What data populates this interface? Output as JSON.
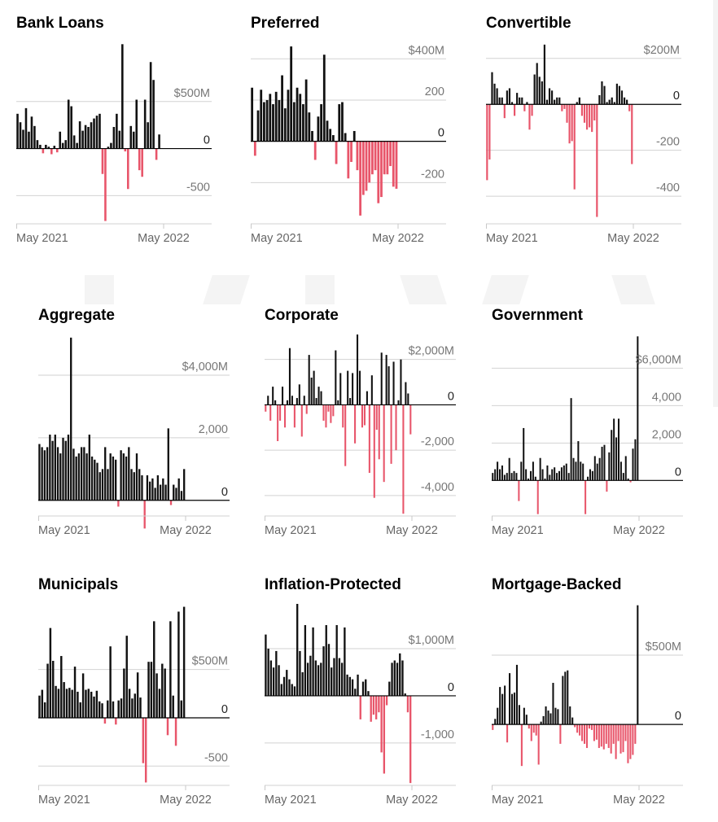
{
  "colors": {
    "inflow": "#111111",
    "outflow": "#e8556a",
    "grid": "#d2d2d2"
  },
  "chart_data": [
    {
      "type": "bar",
      "title": "Bank Loans",
      "ylim": [
        -800,
        1130
      ],
      "yticks": [
        {
          "v": 500,
          "label": "$500M"
        },
        {
          "v": 0,
          "label": "0"
        },
        {
          "v": -500,
          "label": "-500"
        }
      ],
      "xticks": [
        "May 2021",
        "May 2022"
      ],
      "values": [
        370,
        280,
        200,
        430,
        180,
        340,
        240,
        90,
        40,
        -50,
        40,
        20,
        -60,
        30,
        -40,
        180,
        60,
        90,
        520,
        450,
        140,
        60,
        290,
        190,
        250,
        230,
        280,
        320,
        350,
        370,
        -270,
        -770,
        20,
        60,
        230,
        370,
        190,
        1110,
        -30,
        -430,
        240,
        180,
        520,
        -230,
        -300,
        520,
        280,
        920,
        730,
        -120,
        150,
        5
      ]
    },
    {
      "type": "bar",
      "title": "Preferred",
      "ylim": [
        -400,
        480
      ],
      "yticks": [
        {
          "v": 400,
          "label": "$400M"
        },
        {
          "v": 200,
          "label": "200"
        },
        {
          "v": 0,
          "label": "0"
        },
        {
          "v": -200,
          "label": "-200"
        }
      ],
      "xticks": [
        "May 2021",
        "May 2022"
      ],
      "values": [
        260,
        -70,
        150,
        250,
        190,
        200,
        230,
        180,
        240,
        200,
        320,
        160,
        250,
        460,
        190,
        260,
        230,
        180,
        300,
        140,
        50,
        -90,
        120,
        180,
        420,
        100,
        60,
        30,
        -110,
        180,
        190,
        40,
        -180,
        -100,
        50,
        -140,
        -360,
        -260,
        -240,
        -200,
        -160,
        -140,
        -300,
        -270,
        -160,
        -160,
        -120,
        -220
      ],
      "values_tail": [
        -230
      ]
    },
    {
      "type": "bar",
      "title": "Convertible",
      "ylim": [
        -520,
        270
      ],
      "yticks": [
        {
          "v": 200,
          "label": "$200M"
        },
        {
          "v": 0,
          "label": "0"
        },
        {
          "v": -200,
          "label": "-200"
        },
        {
          "v": -400,
          "label": "-400"
        }
      ],
      "xticks": [
        "May 2021",
        "May 2022"
      ],
      "values": [
        -330,
        -240,
        140,
        90,
        70,
        30,
        30,
        -60,
        60,
        70,
        10,
        -50,
        50,
        30,
        30,
        -30,
        10,
        -110,
        -50,
        130,
        180,
        120,
        100,
        260,
        20,
        70,
        60,
        20,
        30,
        30,
        -30,
        -20,
        -80,
        -170,
        -160,
        -370,
        10,
        30,
        -50,
        -80,
        -110,
        -100,
        -120,
        -70,
        -490,
        40,
        100,
        80,
        10,
        20,
        30,
        10,
        90,
        80,
        60,
        30,
        20,
        -30,
        -260
      ]
    },
    {
      "type": "bar",
      "title": "Aggregate",
      "ylim": [
        -500,
        5300
      ],
      "yticks": [
        {
          "v": 4000,
          "label": "$4,000M"
        },
        {
          "v": 2000,
          "label": "2,000"
        },
        {
          "v": 0,
          "label": "0"
        }
      ],
      "xticks": [
        "May 2021",
        "May 2022"
      ],
      "values": [
        1800,
        1700,
        1600,
        1700,
        2100,
        1900,
        2100,
        1700,
        1500,
        2000,
        1900,
        2100,
        5200,
        1650,
        1400,
        1500,
        1700,
        1700,
        1500,
        2100,
        1400,
        1300,
        1200,
        900,
        1000,
        1700,
        1000,
        1500,
        1400,
        1300,
        -200,
        1600,
        1500,
        1400,
        1700,
        1000,
        900,
        1500,
        1000,
        800,
        -900,
        800,
        600,
        700,
        400,
        800,
        500,
        700,
        500,
        2300,
        -150,
        500,
        400,
        700,
        300,
        1000
      ]
    },
    {
      "type": "bar",
      "title": "Corporate",
      "ylim": [
        -4900,
        3100
      ],
      "yticks": [
        {
          "v": 2000,
          "label": "$2,000M"
        },
        {
          "v": 0,
          "label": "0"
        },
        {
          "v": -2000,
          "label": "-2,000"
        },
        {
          "v": -4000,
          "label": "-4,000"
        }
      ],
      "xticks": [
        "May 2021",
        "May 2022"
      ],
      "values": [
        -300,
        400,
        -700,
        800,
        200,
        -1600,
        -700,
        800,
        -1000,
        200,
        2500,
        400,
        -1000,
        300,
        900,
        -1400,
        400,
        -400,
        2200,
        1200,
        1500,
        300,
        800,
        600,
        -700,
        -1000,
        -300,
        -800,
        -500,
        2400,
        200,
        1400,
        -1000,
        -2700,
        1500,
        300,
        1400,
        -1700,
        3100,
        1500,
        -1000,
        -900,
        600,
        -3000,
        1300,
        -4100,
        -1100,
        -2400,
        2300,
        -3400,
        2200,
        1700,
        -2600,
        1900,
        -2000,
        200,
        2000,
        -4800,
        1000,
        500,
        -1300
      ]
    },
    {
      "type": "bar",
      "title": "Government",
      "ylim": [
        -1900,
        7800
      ],
      "yticks": [
        {
          "v": 6000,
          "label": "$6,000M"
        },
        {
          "v": 4000,
          "label": "4,000"
        },
        {
          "v": 2000,
          "label": "2,000"
        },
        {
          "v": 0,
          "label": "0"
        }
      ],
      "xticks": [
        "May 2021",
        "May 2022"
      ],
      "values": [
        400,
        600,
        1000,
        600,
        800,
        300,
        400,
        1200,
        400,
        500,
        400,
        -1100,
        1000,
        2800,
        600,
        100,
        500,
        1000,
        200,
        -1800,
        1200,
        600,
        100,
        800,
        300,
        600,
        700,
        400,
        500,
        700,
        800,
        900,
        400,
        4400,
        1200,
        1000,
        2100,
        1000,
        900,
        -1800,
        200,
        600,
        500,
        1300,
        900,
        1200,
        1800,
        1900,
        -600,
        1500,
        2700,
        3300,
        2300,
        3300,
        1000,
        400,
        1300,
        100,
        -100,
        1700,
        2200,
        7700
      ]
    },
    {
      "type": "bar",
      "title": "Municipals",
      "ylim": [
        -700,
        1180
      ],
      "yticks": [
        {
          "v": 500,
          "label": "$500M"
        },
        {
          "v": 0,
          "label": "0"
        },
        {
          "v": -500,
          "label": "-500"
        }
      ],
      "xticks": [
        "May 2021",
        "May 2022"
      ],
      "values": [
        230,
        290,
        160,
        560,
        930,
        590,
        330,
        300,
        640,
        370,
        300,
        310,
        290,
        530,
        270,
        160,
        460,
        290,
        300,
        270,
        220,
        280,
        170,
        150,
        -60,
        180,
        740,
        170,
        -70,
        180,
        200,
        510,
        850,
        300,
        200,
        250,
        470,
        210,
        -470,
        -670,
        580,
        580,
        1000,
        460,
        300,
        560,
        510,
        -180,
        1000,
        230,
        -290,
        1100,
        180,
        1150
      ]
    },
    {
      "type": "bar",
      "title": "Inflation-Protected",
      "ylim": [
        -1900,
        1950
      ],
      "yticks": [
        {
          "v": 1000,
          "label": "$1,000M"
        },
        {
          "v": 0,
          "label": "0"
        },
        {
          "v": -1000,
          "label": "-1,000"
        }
      ],
      "xticks": [
        "May 2021",
        "May 2022"
      ],
      "values": [
        1300,
        1000,
        750,
        600,
        950,
        650,
        250,
        400,
        550,
        350,
        250,
        200,
        1950,
        950,
        500,
        1500,
        700,
        850,
        1450,
        750,
        650,
        700,
        1050,
        1500,
        1100,
        600,
        800,
        1500,
        800,
        700,
        1450,
        450,
        400,
        350,
        150,
        450,
        -500,
        300,
        350,
        100,
        -550,
        -400,
        -500,
        -350,
        -1200,
        -1650,
        -200,
        300,
        700,
        750,
        700,
        900,
        750,
        50,
        -350,
        -1850
      ]
    },
    {
      "type": "bar",
      "title": "Mortgage-Backed",
      "ylim": [
        -440,
        870
      ],
      "yticks": [
        {
          "v": 500,
          "label": "$500M"
        },
        {
          "v": 0,
          "label": "0"
        }
      ],
      "xticks": [
        "May 2021",
        "May 2022"
      ],
      "values": [
        -40,
        40,
        120,
        270,
        220,
        280,
        -130,
        370,
        220,
        230,
        430,
        140,
        -300,
        120,
        70,
        -30,
        -120,
        -60,
        -80,
        -290,
        20,
        60,
        130,
        100,
        80,
        300,
        120,
        110,
        -140,
        350,
        380,
        390,
        130,
        50,
        -20,
        -60,
        -80,
        -120,
        -140,
        -170,
        -30,
        -40,
        -120,
        -110,
        -170,
        -160,
        -180,
        -140,
        -170,
        -210,
        -140,
        -250,
        -120,
        -210,
        -200,
        -120,
        -280,
        -250,
        -220,
        -140,
        860
      ]
    }
  ]
}
